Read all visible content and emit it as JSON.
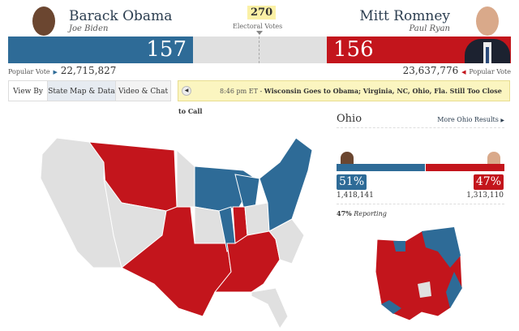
{
  "colors": {
    "dem": "#2e6b97",
    "rep": "#c3151c",
    "undecided": "#e0e0e0"
  },
  "obama": {
    "name": "Barack Obama",
    "vp": "Joe Biden",
    "electoral": "157",
    "popular_label": "Popular Vote",
    "popular": "22,715,827"
  },
  "romney": {
    "name": "Mitt Romney",
    "vp": "Paul Ryan",
    "electoral": "156",
    "popular_label": "Popular Vote",
    "popular": "23,637,776"
  },
  "center": {
    "threshold": "270",
    "label": "Electoral Votes"
  },
  "tabs": {
    "view_by": "View By",
    "map": "State Map & Data",
    "video": "Video & Chat"
  },
  "ticker": {
    "time": "8:46 pm ET",
    "sep": " - ",
    "headline": "Wisconsin Goes to Obama; Virginia, NC, Ohio, Fla. Still Too Close to Call"
  },
  "state": {
    "name": "Ohio",
    "more": "More Ohio Results",
    "obama_pct": "51%",
    "obama_votes": "1,418,141",
    "romney_pct": "47%",
    "romney_votes": "1,313,110",
    "reporting_pct": "47%",
    "reporting_label": "Reporting",
    "obama_share": 0.51,
    "romney_share": 0.47
  }
}
